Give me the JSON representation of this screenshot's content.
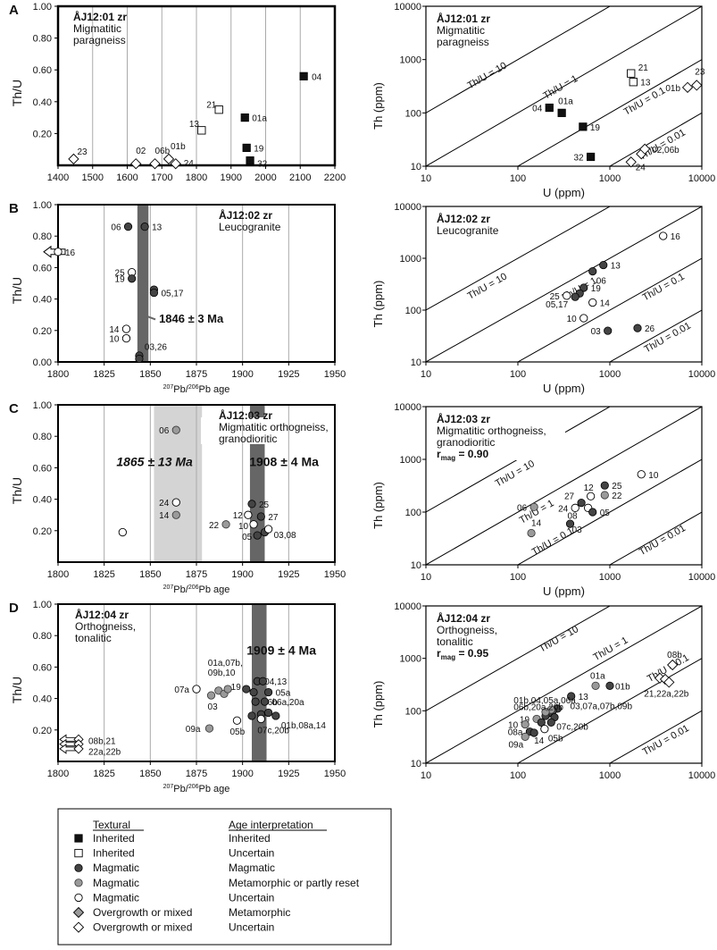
{
  "colors": {
    "inherited": "#111111",
    "magmatic_mag": "#444444",
    "magmatic_meta": "#9a9a9a",
    "open": "#ffffff",
    "overgrowth_meta": "#9a9a9a",
    "grid": "#aaaaaa",
    "band_dark": "#666666",
    "band_light": "#d4d4d4"
  },
  "chart_data": [
    {
      "type": "scatter",
      "panel": "A",
      "side": "left",
      "title": "ÅJ12:01 zr",
      "subtitle": [
        "Migmatitic",
        "paragneiss"
      ],
      "ylabel": "Th/U",
      "xlabel": "",
      "xlim": [
        1400,
        2200
      ],
      "ylim": [
        0,
        1.0
      ],
      "xticks": [
        1400,
        1500,
        1600,
        1700,
        1800,
        1900,
        2000,
        2100,
        2200
      ],
      "yticks": [
        0.2,
        0.4,
        0.6,
        0.8,
        1.0
      ],
      "points": [
        {
          "x": 1445,
          "y": 0.04,
          "s": "ovu",
          "label": "23"
        },
        {
          "x": 1625,
          "y": 0.01,
          "s": "ovu",
          "label": "02"
        },
        {
          "x": 1680,
          "y": 0.01,
          "s": "ovu",
          "label": "06b"
        },
        {
          "x": 1720,
          "y": 0.04,
          "s": "ovu",
          "label": "01b"
        },
        {
          "x": 1740,
          "y": 0.01,
          "s": "ovu",
          "label": "24"
        },
        {
          "x": 1815,
          "y": 0.22,
          "s": "inu",
          "label": "13"
        },
        {
          "x": 1865,
          "y": 0.35,
          "s": "inu",
          "label": "21"
        },
        {
          "x": 1940,
          "y": 0.3,
          "s": "inh",
          "label": "01a"
        },
        {
          "x": 1945,
          "y": 0.11,
          "s": "inh",
          "label": "19"
        },
        {
          "x": 1955,
          "y": 0.03,
          "s": "inh",
          "label": "32"
        },
        {
          "x": 2110,
          "y": 0.56,
          "s": "inh",
          "label": "04"
        }
      ]
    },
    {
      "type": "scatter",
      "panel": "A",
      "side": "right",
      "title": "ÅJ12:01 zr",
      "subtitle": [
        "Migmatitic",
        "paragneiss"
      ],
      "xlabel": "U (ppm)",
      "ylabel": "Th (ppm)",
      "log": true,
      "xlim": [
        10,
        10000
      ],
      "ylim": [
        10,
        10000
      ],
      "ratio_lines": [
        "Th/U = 10",
        "Th/U = 1",
        "Th/U = 0.1",
        "Th/U = 0.01"
      ],
      "points": [
        {
          "x": 220,
          "y": 125,
          "s": "inh",
          "label": "04"
        },
        {
          "x": 300,
          "y": 100,
          "s": "inh",
          "label": "01a"
        },
        {
          "x": 510,
          "y": 55,
          "s": "inh",
          "label": "19"
        },
        {
          "x": 620,
          "y": 15,
          "s": "inh",
          "label": "32"
        },
        {
          "x": 1700,
          "y": 550,
          "s": "inu",
          "label": "21"
        },
        {
          "x": 1800,
          "y": 380,
          "s": "inu",
          "label": "13"
        },
        {
          "x": 1700,
          "y": 12,
          "s": "ovu",
          "label": "24"
        },
        {
          "x": 2200,
          "y": 17,
          "s": "ovu",
          "label": ""
        },
        {
          "x": 2400,
          "y": 21,
          "s": "ovu",
          "label": "02,06b"
        },
        {
          "x": 7000,
          "y": 300,
          "s": "ovu",
          "label": "01b"
        },
        {
          "x": 8800,
          "y": 330,
          "s": "ovu",
          "label": "23"
        }
      ]
    },
    {
      "type": "scatter",
      "panel": "B",
      "side": "left",
      "title": "ÅJ12:02 zr",
      "subtitle": [
        "Leucogranite"
      ],
      "ylabel": "Th/U",
      "xlabel": "207Pb/206Pb age",
      "xlim": [
        1800,
        1950
      ],
      "ylim": [
        0,
        1.0
      ],
      "xticks": [
        1800,
        1825,
        1850,
        1875,
        1900,
        1925,
        1950
      ],
      "yticks": [
        0.0,
        0.2,
        0.4,
        0.6,
        0.8,
        1.0
      ],
      "bands": [
        {
          "from": 1843,
          "to": 1849,
          "tone": "dark"
        }
      ],
      "age_label": "1846 ± 3 Ma",
      "offscale": [
        {
          "y": 0.7,
          "label": "16"
        }
      ],
      "points": [
        {
          "x": 1838,
          "y": 0.86,
          "s": "mag",
          "label": "06"
        },
        {
          "x": 1847,
          "y": 0.86,
          "s": "mag",
          "label": "13"
        },
        {
          "x": 1840,
          "y": 0.57,
          "s": "opn",
          "label": "25"
        },
        {
          "x": 1840,
          "y": 0.53,
          "s": "mag",
          "label": "19"
        },
        {
          "x": 1852,
          "y": 0.46,
          "s": "mag",
          "label": ""
        },
        {
          "x": 1852,
          "y": 0.44,
          "s": "mag",
          "label": "05,17"
        },
        {
          "x": 1837,
          "y": 0.21,
          "s": "opn",
          "label": "14"
        },
        {
          "x": 1837,
          "y": 0.15,
          "s": "opn",
          "label": "10"
        },
        {
          "x": 1844,
          "y": 0.04,
          "s": "mag",
          "label": ""
        },
        {
          "x": 1844,
          "y": 0.02,
          "s": "mag",
          "label": "03,26"
        }
      ]
    },
    {
      "type": "scatter",
      "panel": "B",
      "side": "right",
      "title": "ÅJ12:02 zr",
      "subtitle": [
        "Leucogranite"
      ],
      "xlabel": "U (ppm)",
      "ylabel": "Th (ppm)",
      "log": true,
      "xlim": [
        10,
        10000
      ],
      "ylim": [
        10,
        10000
      ],
      "ratio_lines": [
        "Th/U = 10",
        "Th/U = 1",
        "Th/U = 0.1",
        "Th/U = 0.01"
      ],
      "points": [
        {
          "x": 3800,
          "y": 2700,
          "s": "opn",
          "label": "16"
        },
        {
          "x": 850,
          "y": 740,
          "s": "mag",
          "label": "13"
        },
        {
          "x": 650,
          "y": 560,
          "s": "mag",
          "label": "06"
        },
        {
          "x": 520,
          "y": 270,
          "s": "mag",
          "label": "19"
        },
        {
          "x": 470,
          "y": 210,
          "s": "mag",
          "label": ""
        },
        {
          "x": 420,
          "y": 180,
          "s": "mag",
          "label": "05,17"
        },
        {
          "x": 340,
          "y": 190,
          "s": "opn",
          "label": "25"
        },
        {
          "x": 650,
          "y": 140,
          "s": "opn",
          "label": "14"
        },
        {
          "x": 520,
          "y": 70,
          "s": "opn",
          "label": "10"
        },
        {
          "x": 950,
          "y": 40,
          "s": "mag",
          "label": "03"
        },
        {
          "x": 2000,
          "y": 45,
          "s": "mag",
          "label": "26"
        }
      ]
    },
    {
      "type": "scatter",
      "panel": "C",
      "side": "left",
      "title": "ÅJ12:03 zr",
      "subtitle": [
        "Migmatitic orthogneiss,",
        "granodioritic"
      ],
      "ylabel": "Th/U",
      "xlabel": "207Pb/206Pb age",
      "xlim": [
        1800,
        1950
      ],
      "ylim": [
        0,
        1.0
      ],
      "xticks": [
        1800,
        1825,
        1850,
        1875,
        1900,
        1925,
        1950
      ],
      "yticks": [
        0.2,
        0.4,
        0.6,
        0.8,
        1.0
      ],
      "bands": [
        {
          "from": 1852,
          "to": 1878,
          "tone": "light"
        },
        {
          "from": 1904,
          "to": 1912,
          "tone": "dark"
        }
      ],
      "age_labels": [
        "1865 ± 13 Ma",
        "1908 ± 4 Ma"
      ],
      "points": [
        {
          "x": 1864,
          "y": 0.84,
          "s": "meta",
          "label": "06"
        },
        {
          "x": 1864,
          "y": 0.38,
          "s": "opn",
          "label": "24"
        },
        {
          "x": 1864,
          "y": 0.3,
          "s": "meta",
          "label": "14"
        },
        {
          "x": 1835,
          "y": 0.19,
          "s": "opn",
          "label": ""
        },
        {
          "x": 1891,
          "y": 0.24,
          "s": "meta",
          "label": "22"
        },
        {
          "x": 1905,
          "y": 0.37,
          "s": "mag",
          "label": "25"
        },
        {
          "x": 1903,
          "y": 0.3,
          "s": "opn",
          "label": "12"
        },
        {
          "x": 1910,
          "y": 0.29,
          "s": "mag",
          "label": "27"
        },
        {
          "x": 1906,
          "y": 0.24,
          "s": "opn",
          "label": "10"
        },
        {
          "x": 1908,
          "y": 0.17,
          "s": "mag",
          "label": "05"
        },
        {
          "x": 1912,
          "y": 0.19,
          "s": "mag",
          "label": ""
        },
        {
          "x": 1914,
          "y": 0.21,
          "s": "opn",
          "label": "03,08"
        }
      ]
    },
    {
      "type": "scatter",
      "panel": "C",
      "side": "right",
      "title": "ÅJ12:03 zr",
      "subtitle": [
        "Migmatitic orthogneiss,",
        "granodioritic"
      ],
      "rmag_value": "0.90",
      "xlabel": "U (ppm)",
      "ylabel": "Th (ppm)",
      "log": true,
      "xlim": [
        10,
        10000
      ],
      "ylim": [
        10,
        10000
      ],
      "ratio_lines": [
        "Th/U = 10",
        "Th/U = 1",
        "Th/U = 0.1",
        "Th/U = 0.01"
      ],
      "points": [
        {
          "x": 2200,
          "y": 520,
          "s": "opn",
          "label": "10"
        },
        {
          "x": 150,
          "y": 125,
          "s": "meta",
          "label": "06"
        },
        {
          "x": 880,
          "y": 320,
          "s": "mag",
          "label": "25"
        },
        {
          "x": 880,
          "y": 210,
          "s": "meta",
          "label": "22"
        },
        {
          "x": 620,
          "y": 200,
          "s": "opn",
          "label": "12"
        },
        {
          "x": 490,
          "y": 150,
          "s": "mag",
          "label": "27"
        },
        {
          "x": 420,
          "y": 120,
          "s": "opn",
          "label": "24"
        },
        {
          "x": 580,
          "y": 120,
          "s": "opn",
          "label": "08"
        },
        {
          "x": 650,
          "y": 100,
          "s": "mag",
          "label": "05"
        },
        {
          "x": 370,
          "y": 60,
          "s": "mag",
          "label": "03"
        },
        {
          "x": 140,
          "y": 40,
          "s": "meta",
          "label": "14"
        }
      ]
    },
    {
      "type": "scatter",
      "panel": "D",
      "side": "left",
      "title": "ÅJ12:04 zr",
      "subtitle": [
        "Orthogneiss,",
        "tonalitic"
      ],
      "ylabel": "Th/U",
      "xlabel": "207Pb/206Pb age",
      "xlim": [
        1800,
        1950
      ],
      "ylim": [
        0,
        1.0
      ],
      "xticks": [
        1800,
        1825,
        1850,
        1875,
        1900,
        1925,
        1950
      ],
      "yticks": [
        0.2,
        0.4,
        0.6,
        0.8,
        1.0
      ],
      "bands": [
        {
          "from": 1905,
          "to": 1913,
          "tone": "dark"
        }
      ],
      "age_label": "1909 ± 4 Ma",
      "offscale_labels": [
        "08b,21",
        "22a,22b"
      ],
      "points": [
        {
          "x": 1875,
          "y": 0.46,
          "s": "opn",
          "label": "07a"
        },
        {
          "x": 1883,
          "y": 0.42,
          "s": "meta",
          "label": "03"
        },
        {
          "x": 1887,
          "y": 0.45,
          "s": "meta",
          "label": "01a,07b,09b,10"
        },
        {
          "x": 1890,
          "y": 0.43,
          "s": "meta",
          "label": ""
        },
        {
          "x": 1892,
          "y": 0.46,
          "s": "meta",
          "label": ""
        },
        {
          "x": 1902,
          "y": 0.46,
          "s": "mag",
          "label": "19"
        },
        {
          "x": 1908,
          "y": 0.51,
          "s": "mag",
          "label": "04,13"
        },
        {
          "x": 1911,
          "y": 0.51,
          "s": "mag",
          "label": ""
        },
        {
          "x": 1906,
          "y": 0.44,
          "s": "mag",
          "label": ""
        },
        {
          "x": 1914,
          "y": 0.44,
          "s": "mag",
          "label": "05a"
        },
        {
          "x": 1907,
          "y": 0.38,
          "s": "mag",
          "label": "06b"
        },
        {
          "x": 1912,
          "y": 0.38,
          "s": "mag",
          "label": "06a,20a"
        },
        {
          "x": 1905,
          "y": 0.29,
          "s": "mag",
          "label": ""
        },
        {
          "x": 1910,
          "y": 0.3,
          "s": "mag",
          "label": ""
        },
        {
          "x": 1914,
          "y": 0.31,
          "s": "mag",
          "label": ""
        },
        {
          "x": 1918,
          "y": 0.29,
          "s": "mag",
          "label": "01b,08a,14"
        },
        {
          "x": 1897,
          "y": 0.26,
          "s": "opn",
          "label": "05b"
        },
        {
          "x": 1910,
          "y": 0.27,
          "s": "opn",
          "label": "07c,20b"
        },
        {
          "x": 1882,
          "y": 0.21,
          "s": "meta",
          "label": "09a"
        }
      ]
    },
    {
      "type": "scatter",
      "panel": "D",
      "side": "right",
      "title": "ÅJ12:04 zr",
      "subtitle": [
        "Orthogneiss,",
        "tonalitic"
      ],
      "rmag_value": "0.95",
      "xlabel": "",
      "ylabel": "Th (ppm)",
      "log": true,
      "xlim": [
        10,
        10000
      ],
      "ylim": [
        10,
        10000
      ],
      "ratio_lines": [
        "Th/U = 10",
        "Th/U = 1",
        "Th/U = 0.1",
        "Th/U = 0.01"
      ],
      "overlay_labels": [
        "01b,04,05a,06a",
        "06b,20a,20b",
        "03,07a,07b,09b"
      ],
      "points": [
        {
          "x": 4800,
          "y": 750,
          "s": "ovu",
          "label": "08b"
        },
        {
          "x": 3500,
          "y": 420,
          "s": "ovu",
          "label": ""
        },
        {
          "x": 4000,
          "y": 400,
          "s": "ovu",
          "label": ""
        },
        {
          "x": 4400,
          "y": 350,
          "s": "ovu",
          "label": "21,22a,22b"
        },
        {
          "x": 700,
          "y": 300,
          "s": "meta",
          "label": "01a"
        },
        {
          "x": 1000,
          "y": 300,
          "s": "mag",
          "label": "01b"
        },
        {
          "x": 380,
          "y": 190,
          "s": "mag",
          "label": "13"
        },
        {
          "x": 270,
          "y": 110,
          "s": "mag",
          "label": ""
        },
        {
          "x": 240,
          "y": 100,
          "s": "mag",
          "label": ""
        },
        {
          "x": 215,
          "y": 90,
          "s": "mag",
          "label": ""
        },
        {
          "x": 200,
          "y": 80,
          "s": "mag",
          "label": ""
        },
        {
          "x": 250,
          "y": 75,
          "s": "mag",
          "label": ""
        },
        {
          "x": 230,
          "y": 105,
          "s": "meta",
          "label": ""
        },
        {
          "x": 200,
          "y": 95,
          "s": "meta",
          "label": ""
        },
        {
          "x": 160,
          "y": 70,
          "s": "meta",
          "label": "19"
        },
        {
          "x": 180,
          "y": 60,
          "s": "mag",
          "label": ""
        },
        {
          "x": 230,
          "y": 60,
          "s": "mag",
          "label": "07c,20b"
        },
        {
          "x": 120,
          "y": 55,
          "s": "meta",
          "label": "10"
        },
        {
          "x": 195,
          "y": 45,
          "s": "opn",
          "label": "05b"
        },
        {
          "x": 135,
          "y": 40,
          "s": "mag",
          "label": "08a"
        },
        {
          "x": 150,
          "y": 38,
          "s": "mag",
          "label": "14"
        },
        {
          "x": 120,
          "y": 32,
          "s": "meta",
          "label": "09a"
        }
      ]
    }
  ],
  "legend": {
    "headers": [
      "Textural",
      "Age interpretation"
    ],
    "rows": [
      {
        "s": "inh",
        "textural": "Inherited",
        "age": "Inherited"
      },
      {
        "s": "inu",
        "textural": "Inherited",
        "age": "Uncertain"
      },
      {
        "s": "mag",
        "textural": "Magmatic",
        "age": "Magmatic"
      },
      {
        "s": "meta",
        "textural": "Magmatic",
        "age": "Metamorphic or partly reset"
      },
      {
        "s": "opn",
        "textural": "Magmatic",
        "age": "Uncertain"
      },
      {
        "s": "ovm",
        "textural": "Overgrowth or mixed",
        "age": "Metamorphic"
      },
      {
        "s": "ovu",
        "textural": "Overgrowth or mixed",
        "age": "Uncertain"
      }
    ]
  }
}
